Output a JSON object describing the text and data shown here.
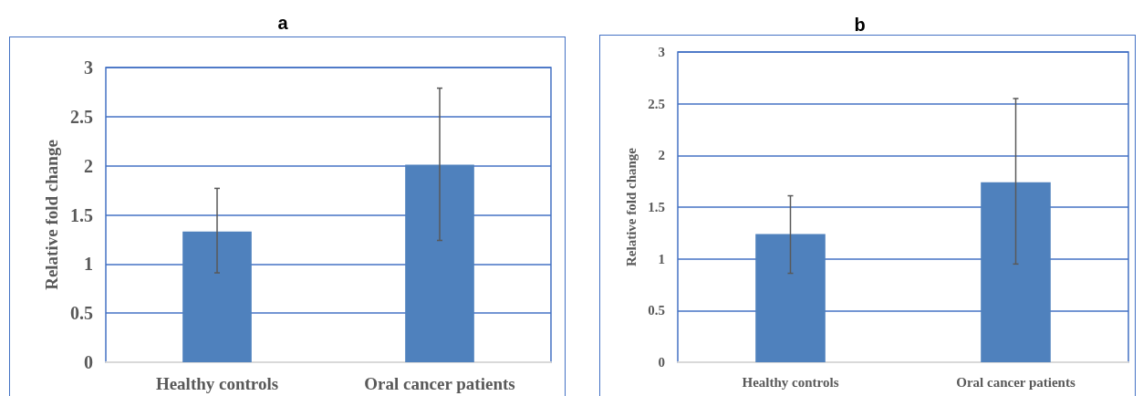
{
  "chart_data": [
    {
      "type": "bar",
      "title": "a",
      "ylabel": "Relative fold change",
      "categories": [
        "Healthy controls",
        "Oral cancer patients"
      ],
      "values": [
        1.33,
        2.01
      ],
      "errors": [
        [
          0.91,
          1.77
        ],
        [
          1.24,
          2.79
        ]
      ],
      "color": "#4f81bd",
      "ylim": [
        0,
        3
      ],
      "yticks": [
        0,
        0.5,
        1,
        1.5,
        2,
        2.5,
        3
      ],
      "grid": "y"
    },
    {
      "type": "bar",
      "title": "b",
      "ylabel": "Relative fold change",
      "categories": [
        "Healthy controls",
        "Oral cancer patients"
      ],
      "values": [
        1.24,
        1.74
      ],
      "errors": [
        [
          0.86,
          1.61
        ],
        [
          0.95,
          2.55
        ]
      ],
      "color": "#4f81bd",
      "ylim": [
        0,
        3
      ],
      "yticks": [
        0,
        0.5,
        1,
        1.5,
        2,
        2.5,
        3
      ],
      "grid": "y"
    }
  ]
}
